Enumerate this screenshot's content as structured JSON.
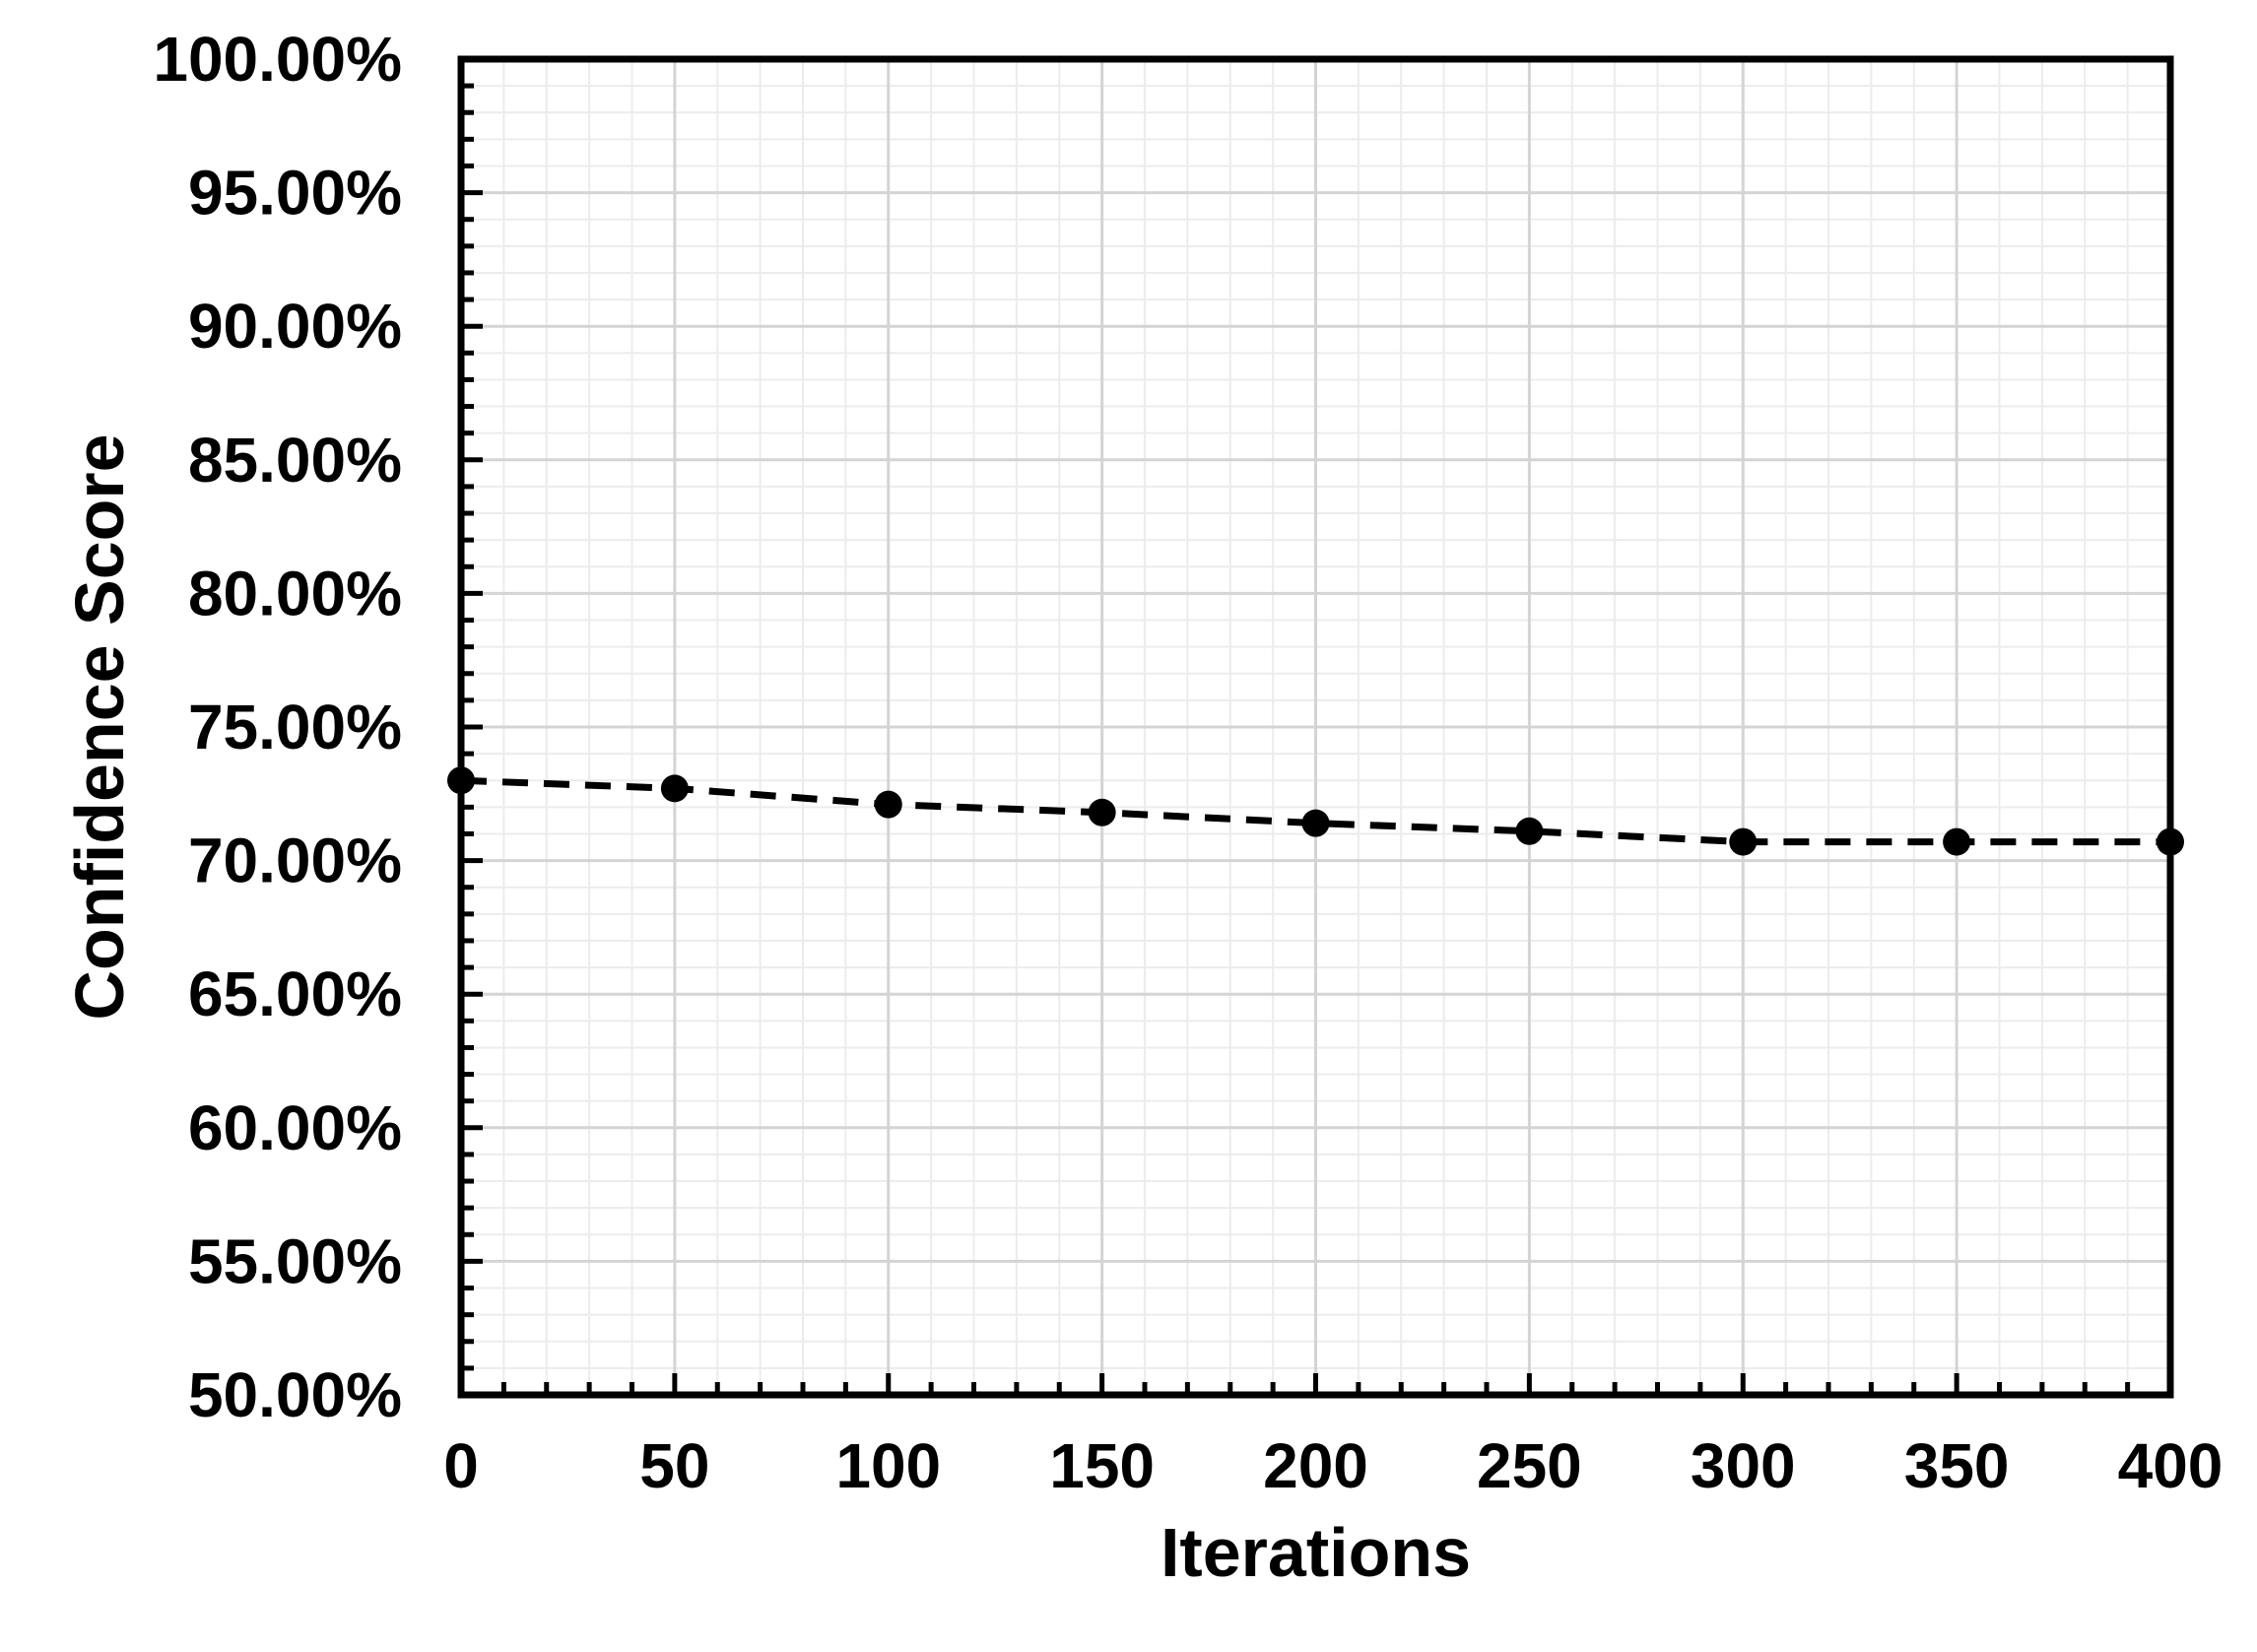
{
  "chart_data": {
    "type": "line",
    "title": "",
    "xlabel": "Iterations",
    "ylabel": "Confidence Score",
    "xlim": [
      0,
      400
    ],
    "ylim": [
      50,
      100
    ],
    "x_ticks": [
      0,
      50,
      100,
      150,
      200,
      250,
      300,
      350,
      400
    ],
    "x_tick_labels": [
      "0",
      "50",
      "100",
      "150",
      "200",
      "250",
      "300",
      "350",
      "400"
    ],
    "y_ticks": [
      50,
      55,
      60,
      65,
      70,
      75,
      80,
      85,
      90,
      95,
      100
    ],
    "y_tick_labels": [
      "50.00%",
      "55.00%",
      "60.00%",
      "65.00%",
      "70.00%",
      "75.00%",
      "80.00%",
      "85.00%",
      "90.00%",
      "95.00%",
      "100.00%"
    ],
    "grid": true,
    "legend": "none",
    "series": [
      {
        "x": [
          0,
          50,
          100,
          150,
          200,
          250,
          300,
          350,
          400
        ],
        "values": [
          73.0,
          72.7,
          72.1,
          71.8,
          71.4,
          71.1,
          70.7,
          70.7,
          70.7
        ],
        "line_style": "dashed",
        "marker": "circle",
        "color": "#000000"
      }
    ],
    "colors": {
      "line": "#000000",
      "frame": "#000000",
      "major_grid": "#d4d4d4",
      "minor_grid": "#ececec"
    }
  }
}
